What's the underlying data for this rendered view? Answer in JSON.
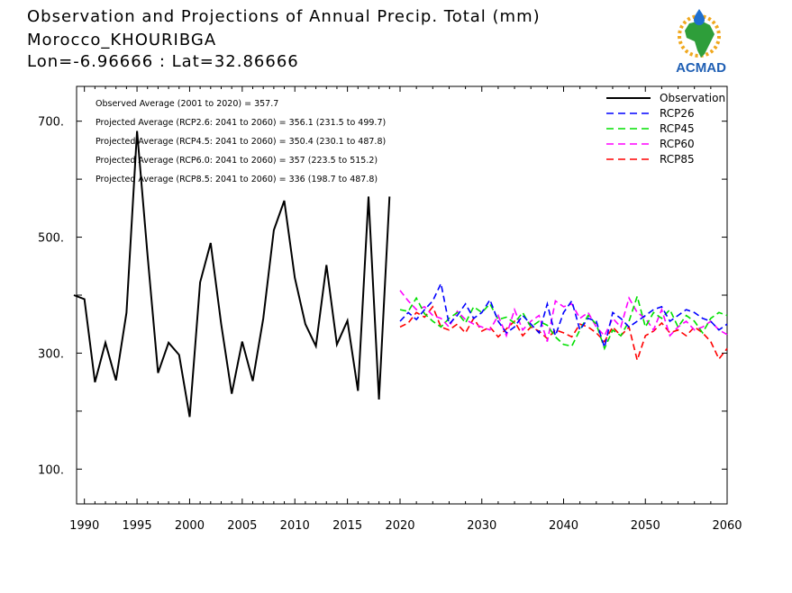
{
  "title": {
    "line1": "Observation and Projections of Annual Precip. Total (mm)",
    "line2": "Morocco_KHOURIBGA",
    "line3": "Lon=-6.96666 : Lat=32.86666"
  },
  "logo": {
    "text": "ACMAD",
    "icon": "africa-map-raindrop-logo",
    "colors": {
      "map": "#2e9e3a",
      "sun": "#f0a81e",
      "text": "#1f5fb4"
    }
  },
  "stats": [
    "Observed Average (2001 to 2020) = 357.7",
    "Projected Average (RCP2.6: 2041 to 2060) = 356.1 (231.5 to 499.7)",
    "Projected Average (RCP4.5: 2041 to 2060) = 350.4 (230.1 to 487.8)",
    "Projected Average (RCP6.0: 2041 to 2060) = 357 (223.5 to 515.2)",
    "Projected Average (RCP8.5: 2041 to 2060) = 336 (198.7 to 487.8)"
  ],
  "chart_data": {
    "type": "line",
    "xlim": [
      1989,
      2060
    ],
    "ylim": [
      40,
      760
    ],
    "x_ticks": [
      1990,
      1995,
      2000,
      2005,
      2010,
      2015,
      2020,
      2030,
      2040,
      2050,
      2060
    ],
    "y_ticks": [
      100,
      300,
      500,
      700
    ],
    "y_tick_labels": [
      "100.",
      "300.",
      "500.",
      "700."
    ],
    "legend_position": "top-right",
    "grid": false,
    "series": [
      {
        "name": "Observation",
        "color": "#000000",
        "style": "solid",
        "x": [
          1989,
          1990,
          1991,
          1992,
          1993,
          1994,
          1995,
          1996,
          1997,
          1998,
          1999,
          2000,
          2001,
          2002,
          2003,
          2004,
          2005,
          2006,
          2007,
          2008,
          2009,
          2010,
          2011,
          2012,
          2013,
          2014,
          2015,
          2016,
          2017,
          2018,
          2019
        ],
        "y": [
          400,
          393,
          250,
          318,
          253,
          370,
          683,
          470,
          266,
          318,
          297,
          190,
          422,
          490,
          350,
          230,
          320,
          252,
          360,
          512,
          563,
          430,
          350,
          312,
          452,
          315,
          356,
          235,
          570,
          220,
          570
        ]
      },
      {
        "name": "RCP26",
        "color": "#0000ff",
        "style": "dashed",
        "x": [
          2020,
          2021,
          2022,
          2023,
          2024,
          2025,
          2026,
          2027,
          2028,
          2029,
          2030,
          2031,
          2032,
          2033,
          2034,
          2035,
          2036,
          2037,
          2038,
          2039,
          2040,
          2041,
          2042,
          2043,
          2044,
          2045,
          2046,
          2047,
          2048,
          2049,
          2050,
          2051,
          2052,
          2053,
          2054,
          2055,
          2056,
          2057,
          2058,
          2059,
          2060
        ],
        "y": [
          355,
          370,
          358,
          375,
          390,
          420,
          350,
          365,
          385,
          360,
          370,
          392,
          355,
          335,
          345,
          365,
          350,
          335,
          385,
          330,
          370,
          390,
          340,
          360,
          355,
          310,
          370,
          360,
          345,
          355,
          365,
          375,
          380,
          355,
          365,
          375,
          370,
          360,
          355,
          340,
          350
        ]
      },
      {
        "name": "RCP45",
        "color": "#00e000",
        "style": "dashed",
        "x": [
          2020,
          2021,
          2022,
          2023,
          2024,
          2025,
          2026,
          2027,
          2028,
          2029,
          2030,
          2031,
          2032,
          2033,
          2034,
          2035,
          2036,
          2037,
          2038,
          2039,
          2040,
          2041,
          2042,
          2043,
          2044,
          2045,
          2046,
          2047,
          2048,
          2049,
          2050,
          2051,
          2052,
          2053,
          2054,
          2055,
          2056,
          2057,
          2058,
          2059,
          2060
        ],
        "y": [
          375,
          372,
          395,
          368,
          355,
          345,
          360,
          370,
          352,
          380,
          370,
          385,
          358,
          362,
          352,
          370,
          345,
          355,
          348,
          328,
          315,
          312,
          340,
          365,
          350,
          308,
          340,
          330,
          355,
          398,
          345,
          370,
          360,
          375,
          345,
          365,
          355,
          335,
          360,
          370,
          365
        ]
      },
      {
        "name": "RCP60",
        "color": "#ff00ff",
        "style": "dashed",
        "x": [
          2020,
          2021,
          2022,
          2023,
          2024,
          2025,
          2026,
          2027,
          2028,
          2029,
          2030,
          2031,
          2032,
          2033,
          2034,
          2035,
          2036,
          2037,
          2038,
          2039,
          2040,
          2041,
          2042,
          2043,
          2044,
          2045,
          2046,
          2047,
          2048,
          2049,
          2050,
          2051,
          2052,
          2053,
          2054,
          2055,
          2056,
          2057,
          2058,
          2059,
          2060
        ],
        "y": [
          408,
          390,
          375,
          380,
          365,
          360,
          345,
          372,
          358,
          350,
          345,
          340,
          365,
          330,
          375,
          340,
          355,
          365,
          320,
          390,
          380,
          385,
          360,
          370,
          345,
          330,
          360,
          345,
          395,
          370,
          360,
          340,
          375,
          330,
          345,
          355,
          340,
          345,
          355,
          340,
          332
        ]
      },
      {
        "name": "RCP85",
        "color": "#ff0000",
        "style": "dashed",
        "x": [
          2020,
          2021,
          2022,
          2023,
          2024,
          2025,
          2026,
          2027,
          2028,
          2029,
          2030,
          2031,
          2032,
          2033,
          2034,
          2035,
          2036,
          2037,
          2038,
          2039,
          2040,
          2041,
          2042,
          2043,
          2044,
          2045,
          2046,
          2047,
          2048,
          2049,
          2050,
          2051,
          2052,
          2053,
          2054,
          2055,
          2056,
          2057,
          2058,
          2059,
          2060
        ],
        "y": [
          345,
          352,
          370,
          362,
          380,
          345,
          340,
          350,
          335,
          360,
          338,
          345,
          328,
          342,
          355,
          330,
          345,
          338,
          325,
          340,
          335,
          328,
          350,
          345,
          335,
          320,
          345,
          330,
          345,
          288,
          330,
          338,
          352,
          335,
          340,
          330,
          345,
          335,
          320,
          290,
          308
        ]
      }
    ]
  }
}
